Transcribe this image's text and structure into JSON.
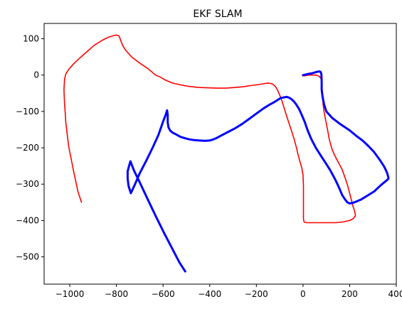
{
  "chart_data": {
    "type": "line",
    "title": "EKF SLAM",
    "xlabel": "",
    "ylabel": "",
    "xlim": [
      -1110,
      400
    ],
    "ylim": [
      -575,
      142
    ],
    "xticks": [
      -1000,
      -800,
      -600,
      -400,
      -200,
      0,
      200,
      400
    ],
    "yticks": [
      100,
      0,
      -100,
      -200,
      -300,
      -400,
      -500
    ],
    "xtick_labels": [
      "−1000",
      "−800",
      "−600",
      "−400",
      "−200",
      "0",
      "200",
      "400"
    ],
    "ytick_labels": [
      "100",
      "0",
      "−100",
      "−200",
      "−300",
      "−400",
      "−500"
    ],
    "grid": false,
    "series": [
      {
        "color": "#ff0000",
        "x": [
          -950,
          -965,
          -985,
          -1005,
          -1017,
          -1023,
          -1025,
          -1022,
          -1017,
          -1005,
          -985,
          -955,
          -925,
          -895,
          -860,
          -835,
          -815,
          -800,
          -790,
          -785,
          -780,
          -772,
          -760,
          -735,
          -700,
          -670,
          -650,
          -637,
          -625,
          -610,
          -590,
          -560,
          -525,
          -490,
          -450,
          -410,
          -370,
          -330,
          -290,
          -255,
          -225,
          -200,
          -180,
          -163,
          -150,
          -138,
          -127,
          -118,
          -110,
          -100,
          -90,
          -80,
          -68,
          -55,
          -40,
          -28,
          -20,
          -12,
          -5,
          0,
          2,
          2,
          2,
          2,
          4,
          8,
          16,
          30,
          50,
          70,
          90,
          110,
          140,
          170,
          200,
          215,
          225,
          222,
          214,
          206,
          200,
          192,
          180,
          168,
          150,
          135,
          125,
          118,
          112,
          108,
          102,
          96,
          90,
          86,
          84,
          82,
          80,
          78,
          70,
          58,
          42,
          26,
          14,
          8,
          2,
          -2,
          0,
          4
        ],
        "y": [
          -350,
          -320,
          -260,
          -195,
          -130,
          -70,
          -40,
          -10,
          3,
          15,
          30,
          48,
          65,
          82,
          96,
          104,
          108,
          110,
          108,
          102,
          92,
          80,
          68,
          50,
          33,
          20,
          10,
          2,
          -2,
          -6,
          -14,
          -22,
          -27,
          -31,
          -34,
          -35,
          -36,
          -36,
          -34,
          -32,
          -29,
          -27,
          -25,
          -23,
          -22,
          -23,
          -26,
          -32,
          -40,
          -55,
          -72,
          -92,
          -117,
          -142,
          -172,
          -200,
          -222,
          -240,
          -256,
          -275,
          -305,
          -345,
          -380,
          -395,
          -403,
          -405,
          -406,
          -406,
          -406,
          -406,
          -406,
          -406,
          -406,
          -404,
          -400,
          -395,
          -387,
          -375,
          -360,
          -340,
          -325,
          -305,
          -282,
          -260,
          -238,
          -220,
          -205,
          -190,
          -175,
          -160,
          -140,
          -120,
          -100,
          -80,
          -60,
          -40,
          -22,
          -10,
          -4,
          0,
          0,
          0,
          -1,
          -2,
          -2,
          -2,
          -1,
          0
        ]
      },
      {
        "color": "#0000ff",
        "x": [
          -505,
          -530,
          -560,
          -595,
          -630,
          -665,
          -700,
          -725,
          -740,
          -748,
          -752,
          -752,
          -748,
          -738,
          -720,
          -700,
          -670,
          -645,
          -620,
          -600,
          -588,
          -583,
          -580,
          -580,
          -577,
          -570,
          -560,
          -545,
          -525,
          -505,
          -485,
          -465,
          -445,
          -420,
          -400,
          -385,
          -370,
          -350,
          -320,
          -290,
          -260,
          -230,
          -200,
          -170,
          -145,
          -125,
          -108,
          -95,
          -85,
          -78,
          -70,
          -60,
          -50,
          -40,
          -30,
          -18,
          -5,
          8,
          20,
          35,
          55,
          80,
          100,
          115,
          128,
          140,
          150,
          158,
          168,
          180,
          190,
          200,
          210,
          220,
          232,
          250,
          275,
          305,
          335,
          358,
          366,
          366,
          360,
          348,
          330,
          305,
          280,
          255,
          230,
          200,
          160,
          125,
          100,
          90,
          84,
          80,
          80,
          79,
          78,
          75,
          70,
          60,
          50,
          40,
          30,
          22,
          14,
          8,
          2,
          0
        ],
        "y": [
          -540,
          -515,
          -478,
          -435,
          -390,
          -343,
          -295,
          -262,
          -237,
          -255,
          -265,
          -285,
          -305,
          -325,
          -300,
          -270,
          -233,
          -200,
          -165,
          -128,
          -108,
          -97,
          -110,
          -130,
          -143,
          -152,
          -158,
          -163,
          -170,
          -174,
          -177,
          -179,
          -180,
          -181,
          -180,
          -177,
          -173,
          -166,
          -156,
          -146,
          -134,
          -120,
          -106,
          -92,
          -82,
          -75,
          -68,
          -63,
          -62,
          -61,
          -60,
          -62,
          -66,
          -72,
          -80,
          -92,
          -110,
          -130,
          -152,
          -175,
          -200,
          -225,
          -245,
          -260,
          -275,
          -290,
          -303,
          -315,
          -330,
          -342,
          -350,
          -353,
          -352,
          -350,
          -347,
          -342,
          -332,
          -320,
          -302,
          -290,
          -285,
          -282,
          -268,
          -252,
          -234,
          -212,
          -195,
          -180,
          -168,
          -152,
          -135,
          -118,
          -100,
          -80,
          -60,
          -40,
          -20,
          0,
          5,
          9,
          10,
          9,
          7,
          5,
          4,
          3,
          2,
          1,
          0,
          0
        ]
      }
    ]
  }
}
